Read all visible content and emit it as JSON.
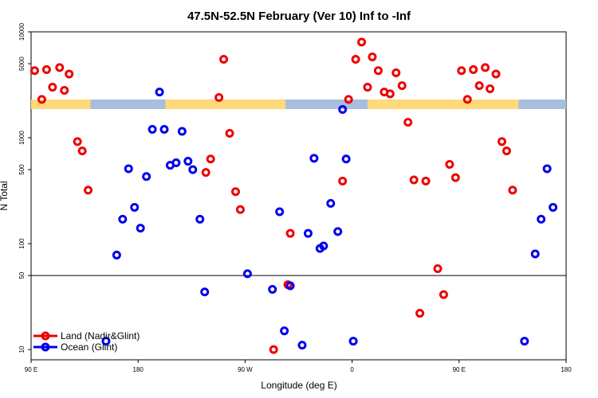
{
  "chart_data": {
    "type": "scatter",
    "title": "47.5N-52.5N February (Ver 10)   Inf to -Inf",
    "xlabel": "Longitude (deg E)",
    "ylabel": "N Total",
    "x_ticks": [
      {
        "value": 90,
        "label": "90 E"
      },
      {
        "value": 180,
        "label": "180"
      },
      {
        "value": 270,
        "label": "90 W"
      },
      {
        "value": 360,
        "label": "0"
      },
      {
        "value": 450,
        "label": "90 E"
      },
      {
        "value": 540,
        "label": "180"
      }
    ],
    "y_ticks": [
      {
        "value": 10,
        "label": "10"
      },
      {
        "value": 50,
        "label": "50"
      },
      {
        "value": 100,
        "label": "100"
      },
      {
        "value": 500,
        "label": "500"
      },
      {
        "value": 1000,
        "label": "1000"
      },
      {
        "value": 5000,
        "label": "5000"
      },
      {
        "value": 10000,
        "label": "10000"
      }
    ],
    "xlim": [
      90,
      540
    ],
    "ylim": [
      8,
      10000
    ],
    "y_scale": "log",
    "reference_line_y": 50,
    "land_strip": {
      "color_land": "#ffd97a",
      "color_ocean": "#a8bedd",
      "ocean_ranges": [
        [
          140,
          203
        ],
        [
          304,
          373
        ],
        [
          500,
          540
        ]
      ]
    },
    "legend_position": "bottom-left",
    "series": [
      {
        "name": "Land (Nadir&Glint)",
        "color": "#ee0000",
        "points": [
          [
            93,
            4300
          ],
          [
            99,
            2300
          ],
          [
            103,
            4400
          ],
          [
            108,
            3000
          ],
          [
            114,
            4600
          ],
          [
            118,
            2800
          ],
          [
            122,
            4000
          ],
          [
            129,
            920
          ],
          [
            133,
            750
          ],
          [
            138,
            320
          ],
          [
            237,
            470
          ],
          [
            241,
            630
          ],
          [
            248,
            2400
          ],
          [
            252,
            5500
          ],
          [
            257,
            1100
          ],
          [
            262,
            310
          ],
          [
            266,
            210
          ],
          [
            294,
            10
          ],
          [
            306,
            41
          ],
          [
            308,
            125
          ],
          [
            352,
            390
          ],
          [
            357,
            2300
          ],
          [
            363,
            5500
          ],
          [
            368,
            8000
          ],
          [
            373,
            3000
          ],
          [
            377,
            5800
          ],
          [
            382,
            4300
          ],
          [
            387,
            2700
          ],
          [
            392,
            2600
          ],
          [
            397,
            4100
          ],
          [
            402,
            3100
          ],
          [
            407,
            1400
          ],
          [
            412,
            400
          ],
          [
            417,
            22
          ],
          [
            422,
            390
          ],
          [
            432,
            58
          ],
          [
            437,
            33
          ],
          [
            442,
            560
          ],
          [
            447,
            420
          ],
          [
            452,
            4300
          ],
          [
            457,
            2300
          ],
          [
            462,
            4400
          ],
          [
            467,
            3100
          ],
          [
            472,
            4600
          ],
          [
            476,
            2900
          ],
          [
            481,
            4000
          ],
          [
            486,
            920
          ],
          [
            490,
            750
          ],
          [
            495,
            320
          ]
        ]
      },
      {
        "name": "Ocean (Glint)",
        "color": "#0000ee",
        "points": [
          [
            153,
            12
          ],
          [
            162,
            78
          ],
          [
            167,
            170
          ],
          [
            172,
            510
          ],
          [
            177,
            220
          ],
          [
            182,
            140
          ],
          [
            187,
            430
          ],
          [
            192,
            1200
          ],
          [
            198,
            2700
          ],
          [
            202,
            1200
          ],
          [
            207,
            550
          ],
          [
            212,
            580
          ],
          [
            217,
            1150
          ],
          [
            222,
            600
          ],
          [
            226,
            500
          ],
          [
            232,
            170
          ],
          [
            236,
            35
          ],
          [
            272,
            52
          ],
          [
            293,
            37
          ],
          [
            299,
            200
          ],
          [
            303,
            15
          ],
          [
            308,
            40
          ],
          [
            318,
            11
          ],
          [
            323,
            125
          ],
          [
            328,
            640
          ],
          [
            333,
            90
          ],
          [
            336,
            95
          ],
          [
            342,
            240
          ],
          [
            348,
            130
          ],
          [
            352,
            1850
          ],
          [
            355,
            630
          ],
          [
            361,
            12
          ],
          [
            505,
            12
          ],
          [
            514,
            80
          ],
          [
            519,
            170
          ],
          [
            524,
            510
          ],
          [
            529,
            220
          ]
        ]
      }
    ]
  }
}
